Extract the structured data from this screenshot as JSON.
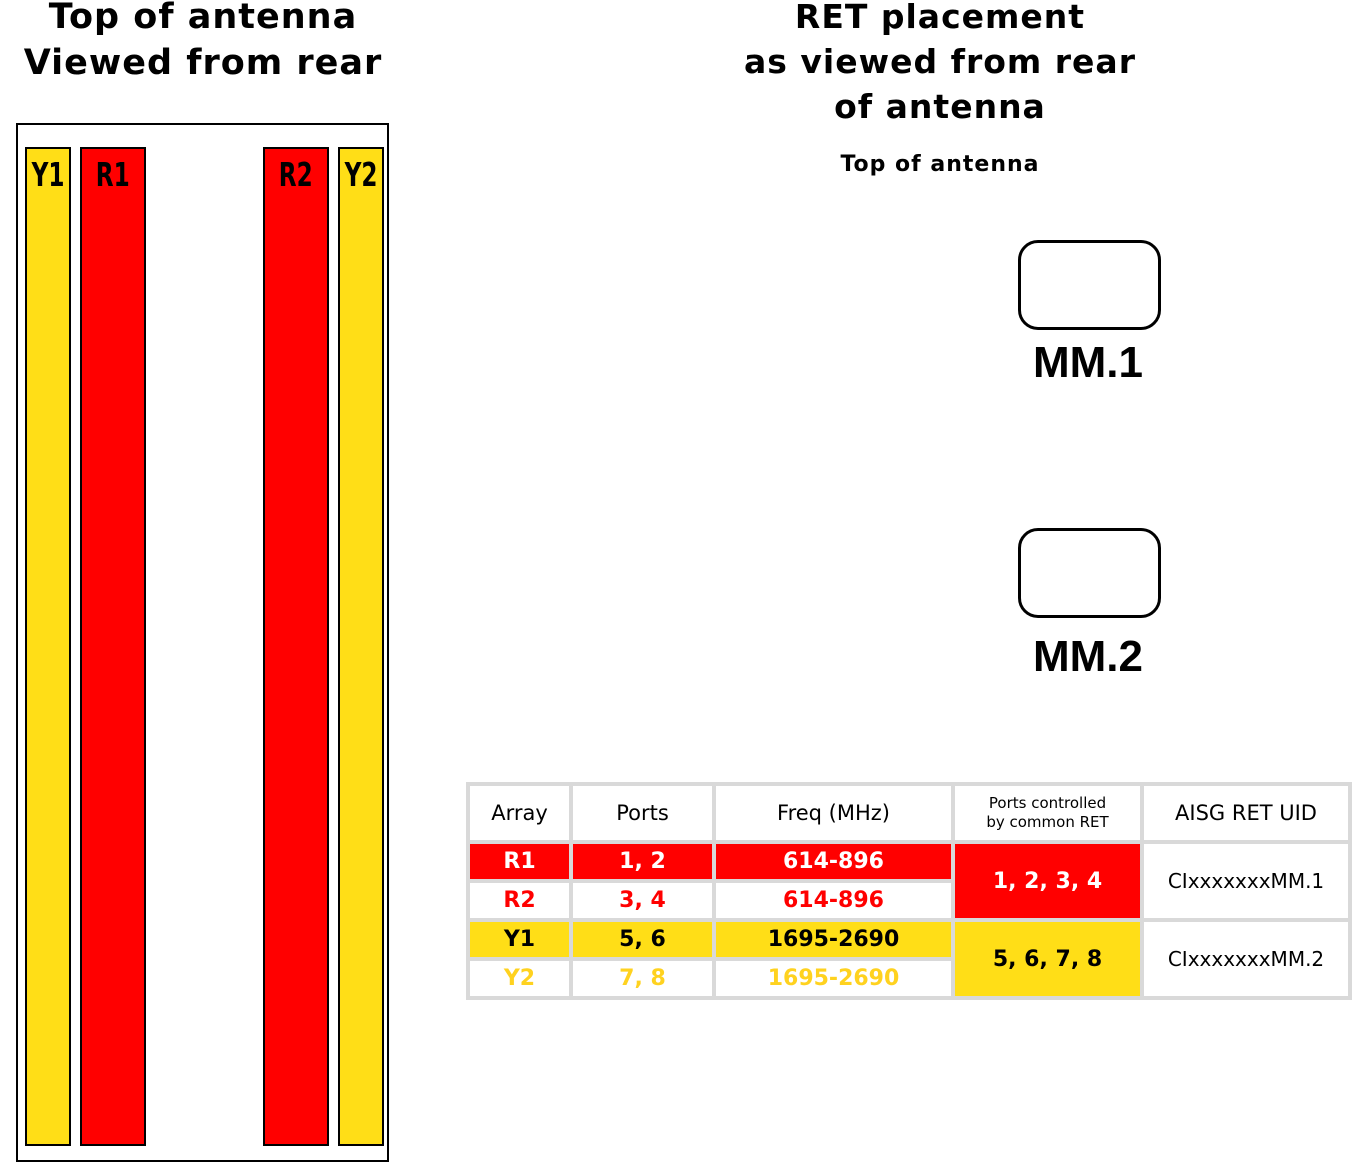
{
  "left_heading": {
    "line1": "Top of antenna",
    "line2": "Viewed from rear"
  },
  "antenna_columns": [
    {
      "label": "Y1",
      "color": "#ffde17"
    },
    {
      "label": "R1",
      "color": "#ff0000"
    },
    {
      "label": "R2",
      "color": "#ff0000"
    },
    {
      "label": "Y2",
      "color": "#ffde17"
    }
  ],
  "right_heading": {
    "line1": "RET placement",
    "line2": "as viewed from rear",
    "line3": "of antenna",
    "top_label": "Top of antenna"
  },
  "rets": [
    {
      "label": "MM.1"
    },
    {
      "label": "MM.2"
    }
  ],
  "table": {
    "headers": {
      "array": "Array",
      "ports": "Ports",
      "freq": "Freq (MHz)",
      "controlled_line1": "Ports controlled",
      "controlled_line2": "by common RET",
      "uid": "AISG RET UID"
    },
    "rows": [
      {
        "array": "R1",
        "ports": "1, 2",
        "freq": "614-896"
      },
      {
        "array": "R2",
        "ports": "3, 4",
        "freq": "614-896"
      },
      {
        "array": "Y1",
        "ports": "5, 6",
        "freq": "1695-2690"
      },
      {
        "array": "Y2",
        "ports": "7, 8",
        "freq": "1695-2690"
      }
    ],
    "groups": [
      {
        "controlled": "1, 2, 3, 4",
        "uid": "CIxxxxxxxMM.1"
      },
      {
        "controlled": "5, 6, 7, 8",
        "uid": "CIxxxxxxxMM.2"
      }
    ]
  },
  "colors": {
    "red": "#ff0000",
    "yellow": "#ffde17",
    "table_border": "#d9d9d9"
  }
}
